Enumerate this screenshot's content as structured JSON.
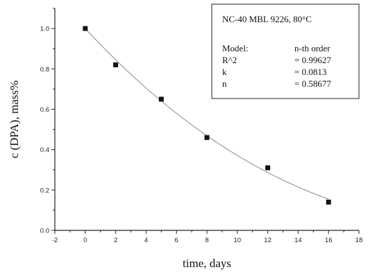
{
  "chart_data": {
    "type": "scatter",
    "xlabel": "time, days",
    "ylabel": "c (DPA), mass%",
    "xlim": [
      -2,
      18
    ],
    "ylim": [
      0.0,
      1.1
    ],
    "x_ticks": [
      "-2",
      "0",
      "2",
      "4",
      "6",
      "8",
      "10",
      "12",
      "14",
      "16",
      "18"
    ],
    "y_ticks": [
      "0.0",
      "0.2",
      "0.4",
      "0.6",
      "0.8",
      "1.0"
    ],
    "grid": false,
    "series": [
      {
        "marker": "square",
        "color": "#111111",
        "x": [
          0,
          2,
          5,
          8,
          12,
          16
        ],
        "y": [
          1.0,
          0.82,
          0.65,
          0.46,
          0.31,
          0.14
        ]
      }
    ],
    "fit": {
      "color": "#8a8a8a",
      "model": "n-th order",
      "c0": 1.0,
      "k": 0.0813,
      "n": 0.58677,
      "x_range": [
        0,
        16
      ]
    },
    "legend_box": {
      "placement": "top-right",
      "title": "NC-40  MBL 9226,  80°C",
      "rows": [
        {
          "label": "Model:",
          "value": "n-th order"
        },
        {
          "label": "R^2",
          "value": "= 0.99627"
        },
        {
          "label": "k",
          "value": "= 0.0813"
        },
        {
          "label": "n",
          "value": "= 0.58677"
        }
      ]
    }
  }
}
